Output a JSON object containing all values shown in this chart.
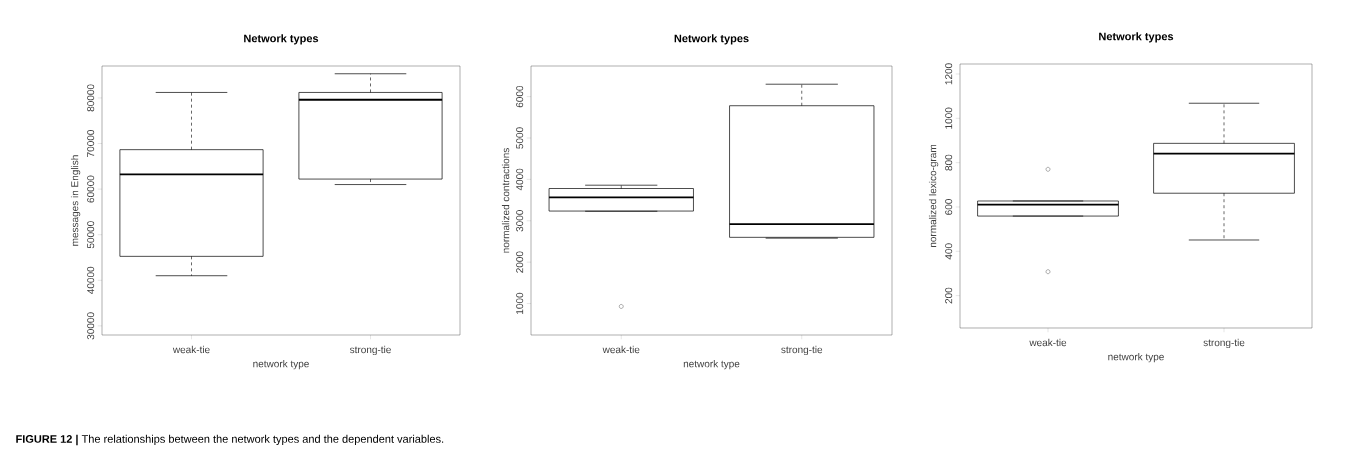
{
  "chart_data": [
    {
      "type": "box",
      "title": "Network types",
      "xlabel": "network type",
      "ylabel": "messages in English",
      "categories": [
        "weak-tie",
        "strong-tie"
      ],
      "boxes": [
        {
          "low": 41000,
          "q1": 45250,
          "median": 63250,
          "q3": 68650,
          "high": 81200
        },
        {
          "low": 61000,
          "q1": 62200,
          "median": 79600,
          "q3": 81200,
          "high": 85300
        }
      ],
      "ylim": [
        28000,
        87000
      ],
      "yticks": [
        30000,
        40000,
        50000,
        60000,
        70000,
        80000
      ],
      "annotations": [
        "**FIGURE 12 |** The relationships between the network types and the dependent variables."
      ]
    },
    {
      "type": "box",
      "title": "Network types",
      "xlabel": "network type",
      "ylabel": "normalized contractions",
      "categories": [
        "weak-tie",
        "strong-tie"
      ],
      "boxes": [
        {
          "low": 3230,
          "q1": 3235,
          "median": 3565,
          "q3": 3780,
          "high": 3860,
          "outliers": [
            930
          ]
        },
        {
          "low": 2580,
          "q1": 2600,
          "median": 2920,
          "q3": 5780,
          "high": 6300
        }
      ],
      "ylim": [
        240,
        6740
      ],
      "yticks": [
        1000,
        2000,
        3000,
        4000,
        5000,
        6000
      ]
    },
    {
      "type": "box",
      "title": "Network types",
      "xlabel": "network type",
      "ylabel": "normalized lexico-gram",
      "categories": [
        "weak-tie",
        "strong-tie"
      ],
      "boxes": [
        {
          "low": 559,
          "q1": 559,
          "median": 611,
          "q3": 627,
          "high": 627,
          "outliers": [
            770,
            308
          ]
        },
        {
          "low": 451,
          "q1": 662,
          "median": 841,
          "q3": 887,
          "high": 1068
        }
      ],
      "ylim": [
        54,
        1245
      ],
      "yticks": [
        200,
        400,
        600,
        800,
        1000,
        1200
      ]
    }
  ]
}
